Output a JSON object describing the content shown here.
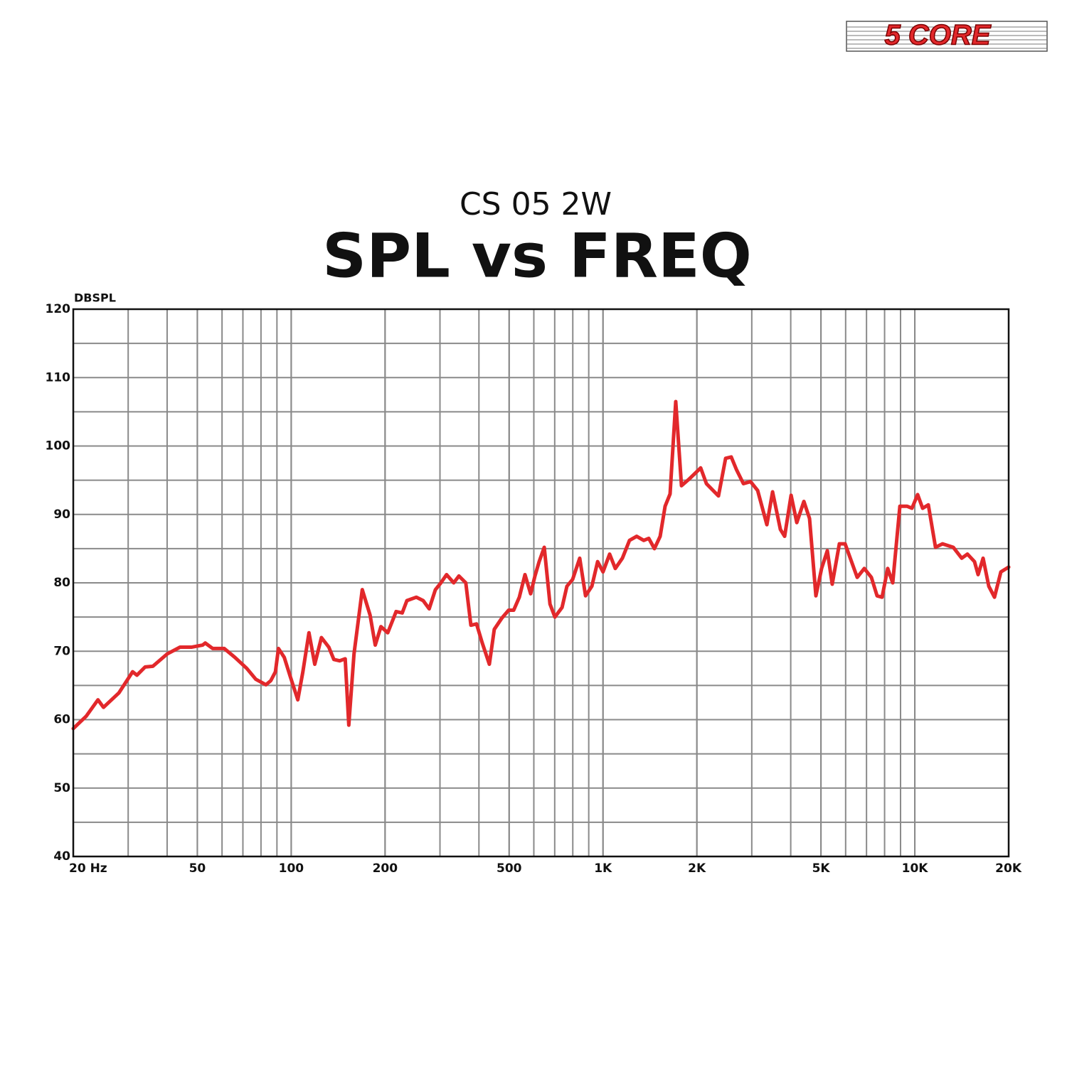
{
  "logo": "5 CORE",
  "chart_data": {
    "type": "line",
    "title": "CS 05 2W",
    "subtitle": "SPL vs FREQ",
    "y_label": "DBSPL",
    "x_scale": "log",
    "grid": true,
    "color": "#e2282b",
    "xlim": [
      20,
      20000
    ],
    "ylim": [
      40,
      120
    ],
    "xticks": [
      {
        "value": 20,
        "label": "20 Hz"
      },
      50,
      100,
      200,
      500,
      {
        "value": 1000,
        "label": "1K"
      },
      {
        "value": 2000,
        "label": "2K"
      },
      {
        "value": 5000,
        "label": "5K"
      },
      {
        "value": 10000,
        "label": "10K"
      },
      {
        "value": 20000,
        "label": "20K"
      }
    ],
    "yticks": [
      40,
      50,
      60,
      70,
      80,
      90,
      100,
      110,
      120
    ],
    "x": [
      20,
      22,
      24,
      25,
      28,
      31,
      32,
      34,
      36,
      40,
      44,
      48,
      52,
      53,
      56,
      61,
      66,
      72,
      77,
      83,
      86,
      89,
      91,
      95,
      99,
      105,
      109,
      114,
      119,
      125,
      132,
      137,
      143,
      149,
      153,
      159,
      169,
      179,
      186,
      194,
      204,
      217,
      227,
      235,
      252,
      265,
      277,
      290,
      302,
      315,
      332,
      345,
      363,
      377,
      393,
      410,
      432,
      448,
      473,
      498,
      517,
      539,
      562,
      586,
      605,
      624,
      648,
      676,
      701,
      739,
      766,
      799,
      842,
      879,
      921,
      961,
      1000,
      1050,
      1095,
      1154,
      1216,
      1282,
      1351,
      1402,
      1462,
      1525,
      1582,
      1641,
      1711,
      1785,
      1882,
      1983,
      2057,
      2146,
      2346,
      2473,
      2578,
      2676,
      2820,
      2972,
      3133,
      3354,
      3498,
      3706,
      3824,
      4011,
      4183,
      4408,
      4596,
      4817,
      5024,
      5241,
      5434,
      5728,
      5976,
      6266,
      6535,
      6886,
      7256,
      7568,
      7852,
      8187,
      8496,
      8956,
      9438,
      9792,
      10212,
      10595,
      11050,
      11650,
      12270,
      13280,
      14140,
      14750,
      15540,
      15960,
      16560,
      17270,
      18010,
      18880,
      20000
    ],
    "values": [
      58.7,
      60.5,
      62.9,
      61.8,
      63.9,
      67.0,
      66.5,
      67.7,
      67.8,
      69.6,
      70.6,
      70.6,
      70.9,
      71.2,
      70.4,
      70.4,
      69.1,
      67.5,
      65.9,
      65.1,
      65.7,
      67.0,
      70.4,
      69.1,
      66.5,
      62.9,
      67.0,
      72.7,
      68.1,
      72.0,
      70.6,
      68.8,
      68.6,
      68.9,
      59.2,
      69.6,
      79.0,
      75.3,
      70.9,
      73.6,
      72.7,
      75.8,
      75.6,
      77.4,
      77.9,
      77.4,
      76.2,
      79.0,
      80.0,
      81.2,
      80.0,
      81.0,
      80.0,
      73.8,
      74.0,
      71.2,
      68.1,
      73.2,
      74.8,
      76.0,
      76.0,
      77.9,
      81.2,
      78.4,
      81.0,
      83.1,
      85.2,
      76.9,
      75.0,
      76.4,
      79.5,
      80.5,
      83.6,
      78.1,
      79.5,
      83.1,
      81.6,
      84.2,
      82.1,
      83.6,
      86.2,
      86.8,
      86.2,
      86.5,
      85.0,
      86.8,
      91.2,
      93.0,
      106.5,
      94.2,
      95.1,
      96.1,
      96.8,
      94.5,
      92.7,
      98.2,
      98.4,
      96.6,
      94.5,
      94.8,
      93.5,
      88.5,
      93.3,
      87.8,
      86.8,
      92.8,
      88.8,
      91.9,
      89.4,
      78.1,
      82.1,
      84.7,
      79.8,
      85.7,
      85.7,
      83.1,
      80.8,
      82.1,
      80.8,
      78.1,
      77.9,
      82.1,
      80.0,
      91.2,
      91.2,
      90.9,
      92.9,
      90.9,
      91.4,
      85.2,
      85.7,
      85.2,
      83.6,
      84.2,
      83.1,
      81.2,
      83.6,
      79.5,
      77.9,
      81.6,
      82.3
    ]
  }
}
